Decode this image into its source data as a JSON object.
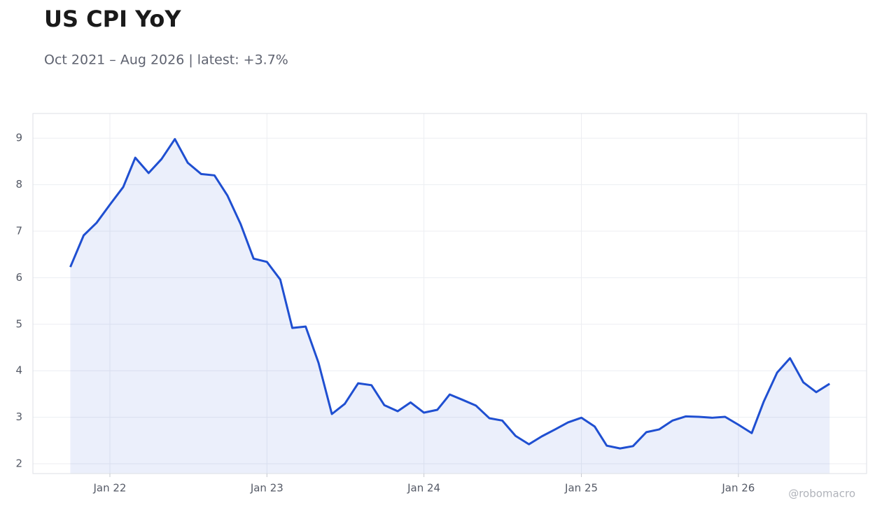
{
  "chart_data": {
    "type": "line",
    "title": "US CPI YoY",
    "subtitle": "Oct 2021 – Aug 2026 | latest: +3.7%",
    "watermark": "@robomacro",
    "x": [
      "2021-10",
      "2021-11",
      "2021-12",
      "2022-01",
      "2022-02",
      "2022-03",
      "2022-04",
      "2022-05",
      "2022-06",
      "2022-07",
      "2022-08",
      "2022-09",
      "2022-10",
      "2022-11",
      "2022-12",
      "2023-01",
      "2023-02",
      "2023-03",
      "2023-04",
      "2023-05",
      "2023-06",
      "2023-07",
      "2023-08",
      "2023-09",
      "2023-10",
      "2023-11",
      "2023-12",
      "2024-01",
      "2024-02",
      "2024-03",
      "2024-04",
      "2024-05",
      "2024-06",
      "2024-07",
      "2024-08",
      "2024-09",
      "2024-10",
      "2024-11",
      "2024-12",
      "2025-01",
      "2025-02",
      "2025-03",
      "2025-04",
      "2025-05",
      "2025-06",
      "2025-07",
      "2025-08",
      "2025-09",
      "2025-10",
      "2025-11",
      "2025-12",
      "2026-01",
      "2026-02",
      "2026-03",
      "2026-04",
      "2026-05",
      "2026-06",
      "2026-07",
      "2026-08"
    ],
    "series": [
      {
        "color": "#1f4fd1",
        "fill": "rgba(31,79,209,0.09)",
        "values": [
          6.23,
          6.91,
          7.18,
          7.57,
          7.95,
          8.58,
          8.25,
          8.55,
          8.98,
          8.47,
          8.23,
          8.2,
          7.77,
          7.15,
          6.41,
          6.34,
          5.96,
          4.92,
          4.95,
          4.17,
          3.07,
          3.29,
          3.73,
          3.69,
          3.26,
          3.13,
          3.32,
          3.1,
          3.16,
          3.49,
          3.37,
          3.25,
          2.98,
          2.93,
          2.6,
          2.42,
          2.59,
          2.74,
          2.89,
          2.99,
          2.8,
          2.39,
          2.33,
          2.38,
          2.68,
          2.74,
          2.93,
          3.02,
          3.01,
          2.99,
          3.01,
          2.84,
          2.66,
          3.34,
          3.96,
          4.27,
          3.75,
          3.54,
          3.72
        ]
      }
    ],
    "xlim": [
      "2021-07-06",
      "2026-10-26"
    ],
    "xticks": [
      {
        "value": "2022-01",
        "label": "Jan 22"
      },
      {
        "value": "2023-01",
        "label": "Jan 23"
      },
      {
        "value": "2024-01",
        "label": "Jan 24"
      },
      {
        "value": "2025-01",
        "label": "Jan 25"
      },
      {
        "value": "2026-01",
        "label": "Jan 26"
      }
    ],
    "ylim": [
      1.79,
      9.53
    ],
    "yticks": [
      2,
      3,
      4,
      5,
      6,
      7,
      8,
      9
    ],
    "grid": true
  }
}
